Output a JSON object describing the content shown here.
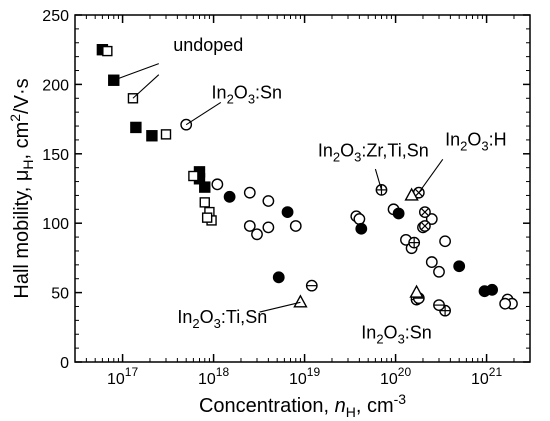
{
  "chart_data": {
    "type": "scatter",
    "title": "",
    "xlabel": {
      "main": "Concentration, ",
      "var": "n",
      "sub": "H",
      "unit": ", cm",
      "sup": "-3"
    },
    "ylabel": {
      "main": "Hall mobility, μ",
      "sub": "H",
      "unit": ", cm",
      "sup": "2",
      "tail": "/V·s"
    },
    "x_scale": "log",
    "xlim": [
      3e+16,
      3e+21
    ],
    "ylim": [
      0,
      250
    ],
    "grid": false,
    "x_ticks": [
      {
        "value": 1e+17,
        "base": "10",
        "exp": "17"
      },
      {
        "value": 1e+18,
        "base": "10",
        "exp": "18"
      },
      {
        "value": 1e+19,
        "base": "10",
        "exp": "19"
      },
      {
        "value": 1e+20,
        "base": "10",
        "exp": "20"
      },
      {
        "value": 1e+21,
        "base": "10",
        "exp": "21"
      }
    ],
    "y_ticks": [
      0,
      50,
      100,
      150,
      200,
      250
    ],
    "series": [
      {
        "marker": "filled-square",
        "points": [
          [
            6e+16,
            225
          ],
          [
            8e+16,
            203
          ],
          [
            1.4e+17,
            169
          ],
          [
            2.1e+17,
            163
          ],
          [
            7e+17,
            137
          ],
          [
            8e+17,
            126
          ],
          [
            7e+17,
            132
          ]
        ]
      },
      {
        "marker": "open-square",
        "points": [
          [
            6.8e+16,
            224
          ],
          [
            1.3e+17,
            190
          ],
          [
            3e+17,
            164
          ],
          [
            6e+17,
            134
          ],
          [
            8e+17,
            115
          ],
          [
            9e+17,
            108
          ],
          [
            9.5e+17,
            102
          ],
          [
            8.5e+17,
            104
          ]
        ]
      },
      {
        "marker": "open-circle",
        "points": [
          [
            5e+17,
            171
          ],
          [
            1.1e+18,
            128
          ],
          [
            2.5e+18,
            122
          ],
          [
            4e+18,
            116
          ],
          [
            2.5e+18,
            98
          ],
          [
            3e+18,
            92
          ],
          [
            4e+18,
            97
          ],
          [
            8e+18,
            98
          ],
          [
            3.7e+19,
            105
          ],
          [
            4e+19,
            103
          ],
          [
            9.5e+19,
            110
          ],
          [
            1.3e+20,
            88
          ],
          [
            2e+20,
            97
          ],
          [
            1.5e+20,
            82
          ],
          [
            2.5e+20,
            72
          ],
          [
            3e+20,
            65
          ],
          [
            2.5e+20,
            103
          ],
          [
            3.5e+20,
            87
          ],
          [
            1.7e+21,
            45
          ],
          [
            1.9e+21,
            42
          ],
          [
            1.6e+21,
            42
          ]
        ]
      },
      {
        "marker": "filled-circle",
        "points": [
          [
            1.5e+18,
            119
          ],
          [
            6.5e+18,
            108
          ],
          [
            5.2e+18,
            61
          ],
          [
            4.2e+19,
            96
          ],
          [
            1.08e+20,
            107
          ],
          [
            5e+20,
            69
          ],
          [
            1.15e+21,
            52
          ],
          [
            9.5e+20,
            51
          ]
        ]
      },
      {
        "marker": "circle-plus",
        "points": [
          [
            7e+19,
            124
          ],
          [
            1.6e+20,
            86
          ],
          [
            1.7e+20,
            45
          ],
          [
            3.5e+20,
            37
          ]
        ]
      },
      {
        "marker": "circle-minus",
        "points": [
          [
            1.2e+19,
            55
          ],
          [
            1.8e+20,
            46
          ],
          [
            3e+20,
            41
          ]
        ]
      },
      {
        "marker": "circle-x",
        "points": [
          [
            1.8e+20,
            122
          ],
          [
            2.1e+20,
            108
          ],
          [
            2.1e+20,
            98
          ]
        ]
      },
      {
        "marker": "open-triangle",
        "points": [
          [
            1.5e+20,
            120
          ],
          [
            1.7e+20,
            50
          ],
          [
            9e+18,
            43
          ]
        ]
      }
    ],
    "annotations": [
      {
        "label": [
          {
            "t": "undoped"
          }
        ],
        "x_data": 3.6e+17,
        "y_data": 224,
        "lines": [
          [
            [
              8e+16,
              203
            ],
            [
              2.5e+17,
              215
            ]
          ],
          [
            [
              1.3e+17,
              190
            ],
            [
              2.5e+17,
              207
            ]
          ]
        ]
      },
      {
        "label": [
          {
            "t": "In"
          },
          {
            "t": "2",
            "sub": true
          },
          {
            "t": "O"
          },
          {
            "t": "3",
            "sub": true
          },
          {
            "t": ":Sn"
          }
        ],
        "x_data": 9.5e+17,
        "y_data": 190,
        "lines": [
          [
            [
              5e+17,
              171
            ],
            [
              1.2e+18,
              187
            ]
          ]
        ]
      },
      {
        "label": [
          {
            "t": "In"
          },
          {
            "t": "2",
            "sub": true
          },
          {
            "t": "O"
          },
          {
            "t": "3",
            "sub": true
          },
          {
            "t": ":Zr,Ti,Sn"
          }
        ],
        "x_data": 1.4e+19,
        "y_data": 148,
        "lines": [
          [
            [
              7e+19,
              124
            ],
            [
              6e+19,
              139
            ]
          ]
        ]
      },
      {
        "label": [
          {
            "t": "In"
          },
          {
            "t": "2",
            "sub": true
          },
          {
            "t": "O"
          },
          {
            "t": "3",
            "sub": true
          },
          {
            "t": ":H"
          }
        ],
        "x_data": 3.5e+20,
        "y_data": 156,
        "lines": [
          [
            [
              1.8e+20,
              122
            ],
            [
              3.3e+20,
              146
            ]
          ]
        ]
      },
      {
        "label": [
          {
            "t": "In"
          },
          {
            "t": "2",
            "sub": true
          },
          {
            "t": "O"
          },
          {
            "t": "3",
            "sub": true
          },
          {
            "t": ":Ti,Sn"
          }
        ],
        "x_data": 4e+17,
        "y_data": 28,
        "lines": [
          [
            [
              9e+18,
              43
            ],
            [
              3.2e+18,
              36
            ]
          ]
        ]
      },
      {
        "label": [
          {
            "t": "In"
          },
          {
            "t": "2",
            "sub": true
          },
          {
            "t": "O"
          },
          {
            "t": "3",
            "sub": true
          },
          {
            "t": ":Sn"
          }
        ],
        "x_data": 4.2e+19,
        "y_data": 17,
        "lines": []
      }
    ]
  }
}
